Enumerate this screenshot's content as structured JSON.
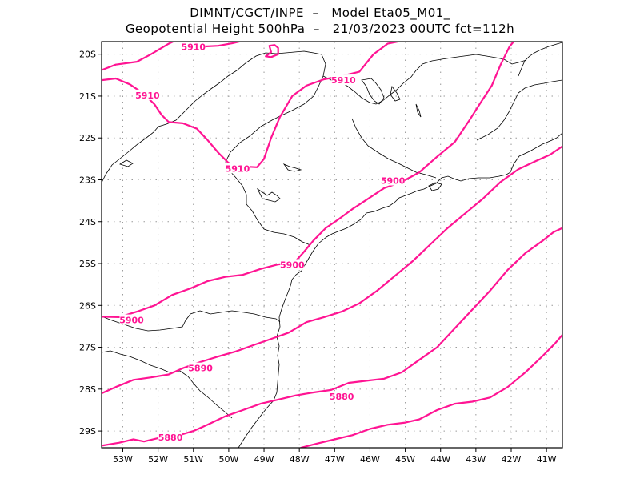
{
  "header": {
    "line1": "DIMNT/CGCT/INPE  –   Model Eta05_M01_",
    "line2": "Geopotential Height 500hPa  –   21/03/2023 00UTC fct=112h"
  },
  "map": {
    "lon_range": [
      -53.6,
      -40.55
    ],
    "lat_range": [
      -29.4,
      -19.7
    ],
    "x_ticks": [
      {
        "v": -53,
        "label": "53W"
      },
      {
        "v": -52,
        "label": "52W"
      },
      {
        "v": -51,
        "label": "51W"
      },
      {
        "v": -50,
        "label": "50W"
      },
      {
        "v": -49,
        "label": "49W"
      },
      {
        "v": -48,
        "label": "48W"
      },
      {
        "v": -47,
        "label": "47W"
      },
      {
        "v": -46,
        "label": "46W"
      },
      {
        "v": -45,
        "label": "45W"
      },
      {
        "v": -44,
        "label": "44W"
      },
      {
        "v": -43,
        "label": "43W"
      },
      {
        "v": -42,
        "label": "42W"
      },
      {
        "v": -41,
        "label": "41W"
      }
    ],
    "y_ticks": [
      {
        "v": -20,
        "label": "20S"
      },
      {
        "v": -21,
        "label": "21S"
      },
      {
        "v": -22,
        "label": "22S"
      },
      {
        "v": -23,
        "label": "23S"
      },
      {
        "v": -24,
        "label": "24S"
      },
      {
        "v": -25,
        "label": "25S"
      },
      {
        "v": -26,
        "label": "26S"
      },
      {
        "v": -27,
        "label": "27S"
      },
      {
        "v": -28,
        "label": "28S"
      },
      {
        "v": -29,
        "label": "29S"
      }
    ],
    "colors": {
      "contour": "#ff1493",
      "coast": "#000000",
      "grid": "#9a9a9a"
    }
  },
  "contour_labels": [
    {
      "text": "5910",
      "lon": -51.0,
      "lat": -19.82
    },
    {
      "text": "5910",
      "lon": -52.3,
      "lat": -20.98
    },
    {
      "text": "5910",
      "lon": -49.75,
      "lat": -22.73
    },
    {
      "text": "5910",
      "lon": -46.75,
      "lat": -20.62
    },
    {
      "text": "5900",
      "lon": -45.35,
      "lat": -23.02
    },
    {
      "text": "5900",
      "lon": -48.2,
      "lat": -25.03
    },
    {
      "text": "5900",
      "lon": -52.75,
      "lat": -26.35
    },
    {
      "text": "5890",
      "lon": -50.8,
      "lat": -27.5
    },
    {
      "text": "5880",
      "lon": -46.8,
      "lat": -28.18
    },
    {
      "text": "5880",
      "lon": -51.65,
      "lat": -29.15
    }
  ],
  "contours": [
    {
      "level": 5910,
      "pts": [
        [
          -53.6,
          -20.38
        ],
        [
          -53.2,
          -20.25
        ],
        [
          -52.6,
          -20.18
        ],
        [
          -52.2,
          -20.0
        ],
        [
          -51.7,
          -19.75
        ],
        [
          -51.4,
          -19.63
        ]
      ]
    },
    {
      "level": 5910,
      "pts": [
        [
          -51.4,
          -19.63
        ],
        [
          -51.1,
          -19.72
        ],
        [
          -50.8,
          -19.82
        ],
        [
          -50.3,
          -19.8
        ],
        [
          -49.9,
          -19.74
        ],
        [
          -49.5,
          -19.66
        ]
      ]
    },
    {
      "level": 5910,
      "pts": [
        [
          -53.6,
          -20.62
        ],
        [
          -53.2,
          -20.58
        ],
        [
          -52.8,
          -20.72
        ],
        [
          -52.4,
          -20.95
        ],
        [
          -52.1,
          -21.2
        ],
        [
          -51.9,
          -21.45
        ],
        [
          -51.7,
          -21.62
        ],
        [
          -51.3,
          -21.65
        ],
        [
          -50.9,
          -21.78
        ],
        [
          -50.6,
          -22.05
        ],
        [
          -50.3,
          -22.35
        ],
        [
          -50.0,
          -22.6
        ],
        [
          -49.6,
          -22.68
        ],
        [
          -49.2,
          -22.7
        ],
        [
          -49.0,
          -22.5
        ],
        [
          -48.8,
          -22.0
        ],
        [
          -48.55,
          -21.5
        ],
        [
          -48.2,
          -21.0
        ],
        [
          -47.8,
          -20.75
        ],
        [
          -47.3,
          -20.6
        ],
        [
          -46.8,
          -20.52
        ],
        [
          -46.3,
          -20.42
        ],
        [
          -45.9,
          -20.0
        ],
        [
          -45.5,
          -19.75
        ],
        [
          -45.1,
          -19.68
        ],
        [
          -44.85,
          -19.62
        ]
      ]
    },
    {
      "level": 5910,
      "pts": [
        [
          -48.95,
          -20.05
        ],
        [
          -48.8,
          -19.95
        ],
        [
          -48.85,
          -19.8
        ],
        [
          -48.7,
          -19.78
        ],
        [
          -48.6,
          -19.85
        ],
        [
          -48.6,
          -20.0
        ],
        [
          -48.8,
          -20.07
        ],
        [
          -48.95,
          -20.05
        ]
      ]
    },
    {
      "level": 5900,
      "pts": [
        [
          -53.6,
          -26.27
        ],
        [
          -53.1,
          -26.28
        ],
        [
          -52.6,
          -26.15
        ],
        [
          -52.1,
          -26.0
        ],
        [
          -51.6,
          -25.75
        ],
        [
          -51.1,
          -25.6
        ],
        [
          -50.6,
          -25.42
        ],
        [
          -50.1,
          -25.32
        ],
        [
          -49.6,
          -25.27
        ],
        [
          -49.1,
          -25.13
        ],
        [
          -48.6,
          -25.02
        ],
        [
          -48.15,
          -24.98
        ],
        [
          -47.9,
          -24.75
        ],
        [
          -47.6,
          -24.45
        ],
        [
          -47.25,
          -24.15
        ],
        [
          -46.9,
          -23.95
        ],
        [
          -46.5,
          -23.7
        ],
        [
          -46.1,
          -23.48
        ],
        [
          -45.6,
          -23.2
        ],
        [
          -45.1,
          -23.05
        ],
        [
          -44.6,
          -22.82
        ],
        [
          -44.1,
          -22.45
        ],
        [
          -43.6,
          -22.1
        ],
        [
          -43.2,
          -21.6
        ],
        [
          -42.9,
          -21.2
        ],
        [
          -42.55,
          -20.75
        ],
        [
          -42.3,
          -20.25
        ],
        [
          -42.05,
          -19.82
        ],
        [
          -41.85,
          -19.62
        ]
      ]
    },
    {
      "level": 5890,
      "pts": [
        [
          -53.6,
          -28.1
        ],
        [
          -53.2,
          -27.95
        ],
        [
          -52.7,
          -27.78
        ],
        [
          -52.2,
          -27.72
        ],
        [
          -51.7,
          -27.65
        ],
        [
          -51.3,
          -27.5
        ],
        [
          -50.8,
          -27.35
        ],
        [
          -50.3,
          -27.22
        ],
        [
          -49.8,
          -27.1
        ],
        [
          -49.3,
          -26.95
        ],
        [
          -48.8,
          -26.8
        ],
        [
          -48.3,
          -26.65
        ],
        [
          -47.8,
          -26.4
        ],
        [
          -47.3,
          -26.28
        ],
        [
          -46.8,
          -26.15
        ],
        [
          -46.3,
          -25.95
        ],
        [
          -45.8,
          -25.65
        ],
        [
          -45.3,
          -25.3
        ],
        [
          -44.8,
          -24.95
        ],
        [
          -44.3,
          -24.55
        ],
        [
          -43.8,
          -24.15
        ],
        [
          -43.3,
          -23.8
        ],
        [
          -42.8,
          -23.45
        ],
        [
          -42.3,
          -23.05
        ],
        [
          -41.8,
          -22.75
        ],
        [
          -41.3,
          -22.55
        ],
        [
          -40.9,
          -22.4
        ],
        [
          -40.55,
          -22.2
        ]
      ]
    },
    {
      "level": 5880,
      "pts": [
        [
          -53.6,
          -29.35
        ],
        [
          -53.1,
          -29.28
        ],
        [
          -52.7,
          -29.2
        ],
        [
          -52.4,
          -29.25
        ],
        [
          -51.9,
          -29.15
        ],
        [
          -51.4,
          -29.1
        ],
        [
          -51.0,
          -29.0
        ],
        [
          -50.6,
          -28.85
        ],
        [
          -50.1,
          -28.65
        ],
        [
          -49.6,
          -28.5
        ],
        [
          -49.1,
          -28.35
        ],
        [
          -48.6,
          -28.25
        ],
        [
          -48.1,
          -28.15
        ],
        [
          -47.6,
          -28.08
        ],
        [
          -47.1,
          -28.02
        ],
        [
          -46.6,
          -27.85
        ],
        [
          -46.1,
          -27.8
        ],
        [
          -45.6,
          -27.75
        ],
        [
          -45.1,
          -27.6
        ],
        [
          -44.6,
          -27.3
        ],
        [
          -44.1,
          -27.0
        ],
        [
          -43.6,
          -26.55
        ],
        [
          -43.1,
          -26.1
        ],
        [
          -42.6,
          -25.65
        ],
        [
          -42.1,
          -25.15
        ],
        [
          -41.6,
          -24.75
        ],
        [
          -41.1,
          -24.45
        ],
        [
          -40.8,
          -24.25
        ],
        [
          -40.55,
          -24.15
        ]
      ]
    },
    {
      "level": 5880,
      "pts": [
        [
          -47.95,
          -29.4
        ],
        [
          -47.5,
          -29.3
        ],
        [
          -47.0,
          -29.2
        ],
        [
          -46.5,
          -29.1
        ],
        [
          -46.0,
          -28.95
        ],
        [
          -45.5,
          -28.85
        ],
        [
          -45.0,
          -28.8
        ],
        [
          -44.6,
          -28.72
        ],
        [
          -44.1,
          -28.5
        ],
        [
          -43.6,
          -28.35
        ],
        [
          -43.1,
          -28.3
        ],
        [
          -42.6,
          -28.2
        ],
        [
          -42.1,
          -27.95
        ],
        [
          -41.6,
          -27.6
        ],
        [
          -41.1,
          -27.2
        ],
        [
          -40.75,
          -26.9
        ],
        [
          -40.55,
          -26.7
        ]
      ]
    }
  ]
}
